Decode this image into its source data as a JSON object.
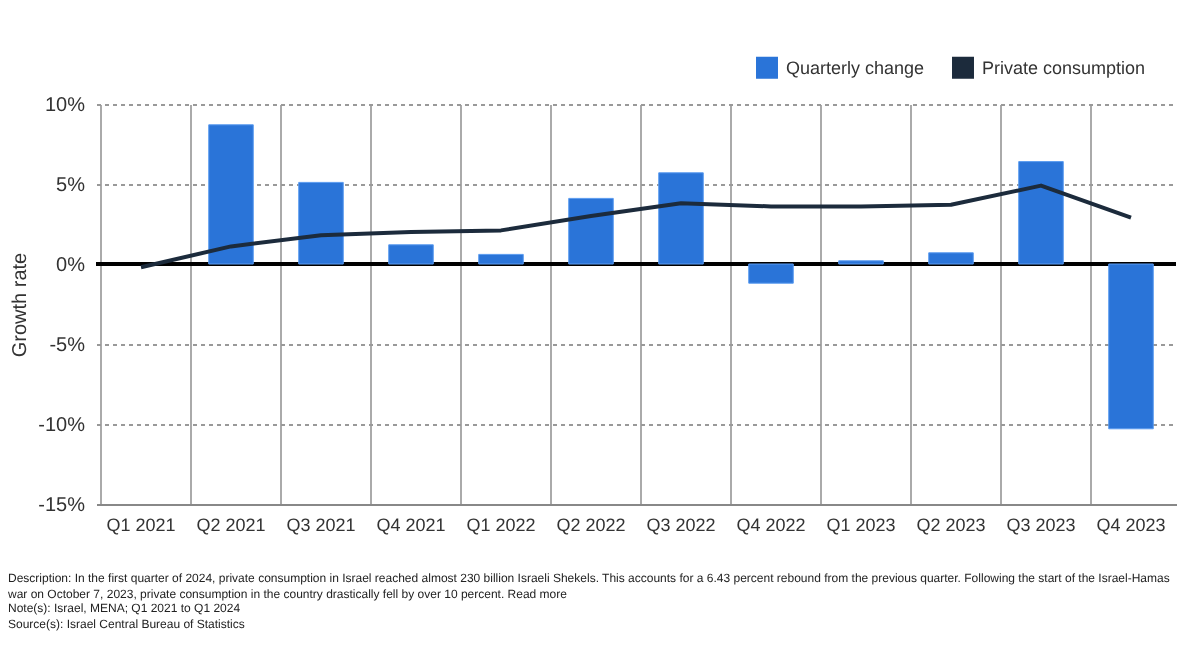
{
  "chart_data": {
    "type": "bar",
    "ylabel": "Growth rate",
    "categories": [
      "Q1 2021",
      "Q2 2021",
      "Q3 2021",
      "Q4 2021",
      "Q1 2022",
      "Q2 2022",
      "Q3 2022",
      "Q4 2022",
      "Q1 2023",
      "Q2 2023",
      "Q3 2023",
      "Q4 2023"
    ],
    "series": [
      {
        "name": "Quarterly change",
        "color": "#2a74d8",
        "values": [
          null,
          8.7,
          5.1,
          1.2,
          0.6,
          4.1,
          5.7,
          -1.2,
          0.2,
          0.7,
          6.4,
          -10.3
        ]
      },
      {
        "name": "Private consumption",
        "type": "line",
        "color": "#1c2b3c",
        "values": [
          -0.2,
          1.1,
          1.8,
          2.0,
          2.1,
          3.0,
          3.8,
          3.6,
          3.6,
          3.7,
          4.9,
          2.9
        ]
      }
    ],
    "ylim": [
      -15,
      10
    ],
    "yticks": [
      {
        "value": -15,
        "label": "-15%"
      },
      {
        "value": -10,
        "label": "-10%"
      },
      {
        "value": -5,
        "label": "-5%"
      },
      {
        "value": 0,
        "label": "0%"
      },
      {
        "value": 5,
        "label": "5%"
      },
      {
        "value": 10,
        "label": "10%"
      }
    ],
    "ref_lines": [
      {
        "axis": "y",
        "value": 0,
        "color": "#000000"
      }
    ],
    "grid": true,
    "legend": "top right",
    "marker": "none",
    "annotations": [
      "Description: In the first quarter of 2024, private consumption in Israel reached almost 230 billion Israeli Shekels. This accounts for a 6.43 percent rebound from the previous quarter. Following the start of the Israel-Hamas war on October 7, 2023, private consumption in the country drastically fell by over 10 percent. Read more",
      "Note(s): Israel, MENA; Q1 2021 to Q1 2024",
      "Source(s): Israel Central Bureau of Statistics"
    ]
  }
}
